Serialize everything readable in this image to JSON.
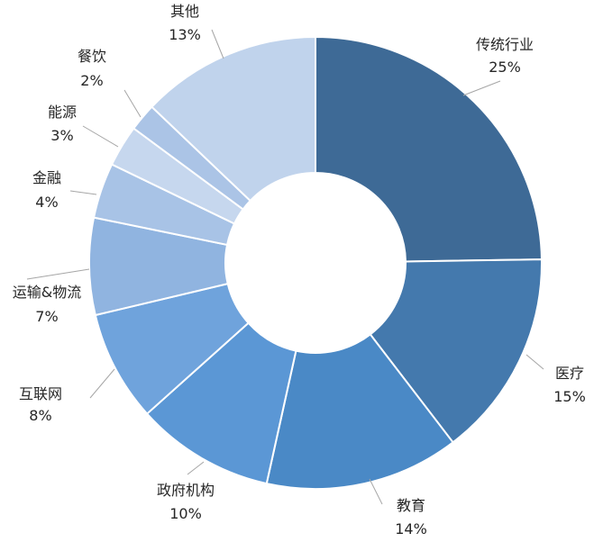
{
  "chart_data": {
    "type": "pie",
    "title": "",
    "categories": [
      "传统行业",
      "医疗",
      "教育",
      "政府机构",
      "互联网",
      "运输&物流",
      "金融",
      "能源",
      "餐饮",
      "其他"
    ],
    "values": [
      25,
      15,
      14,
      10,
      8,
      7,
      4,
      3,
      2,
      13
    ],
    "value_labels": [
      "25%",
      "15%",
      "14%",
      "10%",
      "8%",
      "7%",
      "4%",
      "3%",
      "2%",
      "13%"
    ],
    "colors": [
      "#3E6A96",
      "#4479AD",
      "#4A89C6",
      "#5B97D5",
      "#6FA3DC",
      "#90B4E0",
      "#A8C3E6",
      "#C6D7EE",
      "#ABC4E6",
      "#C0D3EC"
    ],
    "legend": "none",
    "label_position": "outside-with-leader-lines"
  }
}
